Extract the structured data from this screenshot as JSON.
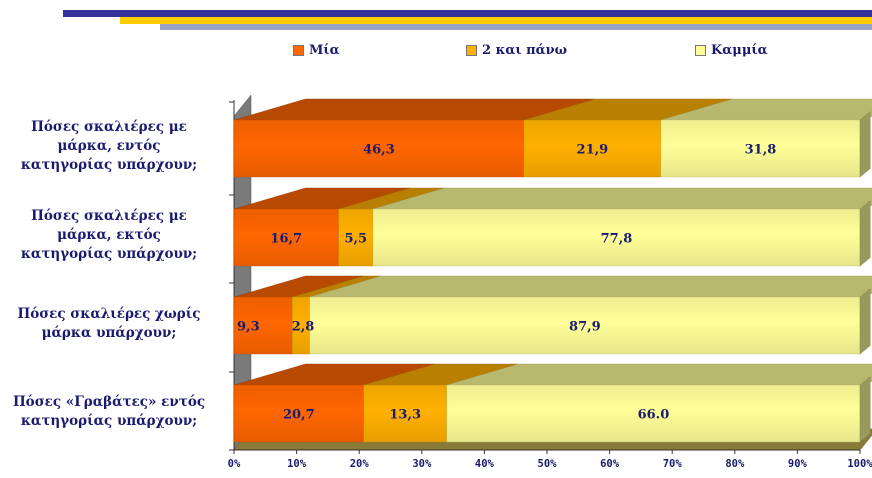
{
  "colors": {
    "mia": "#ff6600",
    "dyo": "#ffb000",
    "kammia": "#ffff99",
    "axis_text": "#1a1a6e",
    "floor": "#8a7a3a",
    "stripe_navy": "#333399",
    "stripe_yellow": "#ffcc00",
    "stripe_gray": "#99a3c7"
  },
  "chart_data": {
    "type": "bar",
    "orientation": "horizontal",
    "stacked": true,
    "percent_scale": true,
    "categories": [
      "Πόσες σκαλιέρες με μάρκα, εντός κατηγορίας υπάρχουν;",
      "Πόσες σκαλιέρες με μάρκα, εκτός κατηγορίας υπάρχουν;",
      "Πόσες σκαλιέρες χωρίς μάρκα υπάρχουν;",
      "Πόσες «Γραβάτες» εντός κατηγορίας υπάρχουν;"
    ],
    "category_lines": [
      [
        "Πόσες σκαλιέρες με",
        "μάρκα, εντός",
        "κατηγορίας υπάρχουν;"
      ],
      [
        "Πόσες σκαλιέρες με",
        "μάρκα, εκτός",
        "κατηγορίας υπάρχουν;"
      ],
      [
        "Πόσες σκαλιέρες χωρίς",
        "μάρκα υπάρχουν;"
      ],
      [
        "Πόσες  «Γραβάτες» εντός",
        "κατηγορίας υπάρχουν;"
      ]
    ],
    "series": [
      {
        "name": "Μία",
        "values": [
          46.3,
          16.7,
          9.3,
          20.7
        ],
        "labels": [
          "46,3",
          "16,7",
          "9,3",
          "20,7"
        ]
      },
      {
        "name": "2 και πάνω",
        "values": [
          21.9,
          5.5,
          2.8,
          13.3
        ],
        "labels": [
          "21,9",
          "5,5",
          "2,8",
          "13,3"
        ]
      },
      {
        "name": "Καμμία",
        "values": [
          31.8,
          77.8,
          87.9,
          66.0
        ],
        "labels": [
          "31,8",
          "77,8",
          "87,9",
          "66.0"
        ]
      }
    ],
    "xlim": [
      0,
      100
    ],
    "x_ticks": [
      "0%",
      "10%",
      "20%",
      "30%",
      "40%",
      "50%",
      "60%",
      "70%",
      "80%",
      "90%",
      "100%"
    ],
    "legend_position": "top",
    "grid": false
  }
}
